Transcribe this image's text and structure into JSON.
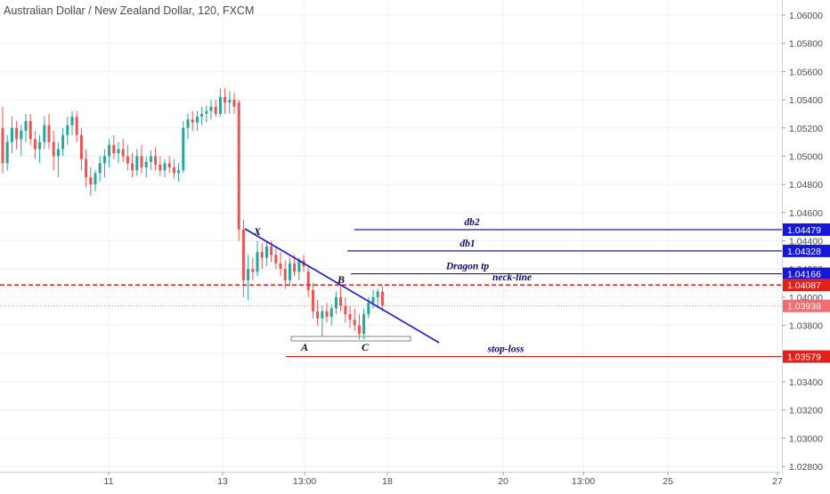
{
  "header": {
    "title": "Australian Dollar / New Zealand Dollar, 120, FXCM"
  },
  "colors": {
    "up": "#26a69a",
    "down": "#ef5350",
    "blue": "#1717d8",
    "red": "#e0201b",
    "grid": "#eef0f3",
    "axis_text": "#4a4a4a",
    "price_dotted": "#ff6b6b"
  },
  "chart_data": {
    "type": "candlestick",
    "ylim": [
      1.0272,
      1.0618
    ],
    "grid": true,
    "y_ticks": [
      "1.06000",
      "1.05800",
      "1.05600",
      "1.05400",
      "1.05200",
      "1.05000",
      "1.04800",
      "1.04600",
      "1.04400",
      "1.04200",
      "1.04000",
      "1.03800",
      "1.03600",
      "1.03400",
      "1.03200",
      "1.03000",
      "1.02800"
    ],
    "x_ticks": [
      "11",
      "13",
      "13:00",
      "18",
      "20",
      "13:00",
      "25",
      "27"
    ],
    "candles": [
      [
        1.052,
        1.0535,
        1.0488,
        1.0495
      ],
      [
        1.0495,
        1.0515,
        1.049,
        1.051
      ],
      [
        1.051,
        1.0528,
        1.0502,
        1.052
      ],
      [
        1.052,
        1.0525,
        1.0505,
        1.0512
      ],
      [
        1.0512,
        1.0522,
        1.05,
        1.0518
      ],
      [
        1.0518,
        1.053,
        1.051,
        1.0525
      ],
      [
        1.0525,
        1.053,
        1.0508,
        1.0512
      ],
      [
        1.0512,
        1.0518,
        1.0498,
        1.0505
      ],
      [
        1.0505,
        1.0515,
        1.0495,
        1.051
      ],
      [
        1.051,
        1.0528,
        1.0505,
        1.0522
      ],
      [
        1.0522,
        1.053,
        1.0505,
        1.051
      ],
      [
        1.051,
        1.0518,
        1.049,
        1.05
      ],
      [
        1.05,
        1.051,
        1.0485,
        1.0505
      ],
      [
        1.0505,
        1.052,
        1.05,
        1.0515
      ],
      [
        1.0515,
        1.0528,
        1.0508,
        1.0522
      ],
      [
        1.0522,
        1.0532,
        1.0515,
        1.0528
      ],
      [
        1.0528,
        1.0532,
        1.051,
        1.0515
      ],
      [
        1.0515,
        1.052,
        1.049,
        1.0498
      ],
      [
        1.0498,
        1.0505,
        1.0478,
        1.0485
      ],
      [
        1.0485,
        1.0492,
        1.0472,
        1.048
      ],
      [
        1.048,
        1.049,
        1.0475,
        1.0488
      ],
      [
        1.0488,
        1.05,
        1.0482,
        1.0495
      ],
      [
        1.0495,
        1.0505,
        1.0485,
        1.05
      ],
      [
        1.05,
        1.0512,
        1.0492,
        1.0508
      ],
      [
        1.0508,
        1.0515,
        1.0498,
        1.0502
      ],
      [
        1.0502,
        1.051,
        1.0495,
        1.0505
      ],
      [
        1.0505,
        1.0512,
        1.0496,
        1.05
      ],
      [
        1.05,
        1.0508,
        1.049,
        1.0495
      ],
      [
        1.0495,
        1.0502,
        1.0485,
        1.049
      ],
      [
        1.049,
        1.0505,
        1.0486,
        1.05
      ],
      [
        1.05,
        1.0508,
        1.0488,
        1.0492
      ],
      [
        1.0492,
        1.05,
        1.0485,
        1.0496
      ],
      [
        1.0496,
        1.0504,
        1.049,
        1.05
      ],
      [
        1.05,
        1.0506,
        1.049,
        1.0494
      ],
      [
        1.0494,
        1.05,
        1.0486,
        1.049
      ],
      [
        1.049,
        1.0498,
        1.0485,
        1.0495
      ],
      [
        1.0495,
        1.05,
        1.0488,
        1.0492
      ],
      [
        1.0492,
        1.0498,
        1.0484,
        1.0488
      ],
      [
        1.0488,
        1.0495,
        1.0482,
        1.049
      ],
      [
        1.049,
        1.0525,
        1.0488,
        1.052
      ],
      [
        1.052,
        1.053,
        1.0512,
        1.0526
      ],
      [
        1.0526,
        1.0532,
        1.0518,
        1.0524
      ],
      [
        1.0524,
        1.0532,
        1.0518,
        1.0528
      ],
      [
        1.0528,
        1.0535,
        1.0522,
        1.053
      ],
      [
        1.053,
        1.0536,
        1.0524,
        1.0532
      ],
      [
        1.0532,
        1.054,
        1.0526,
        1.0535
      ],
      [
        1.0535,
        1.054,
        1.0528,
        1.053
      ],
      [
        1.053,
        1.0548,
        1.0528,
        1.0542
      ],
      [
        1.0542,
        1.0548,
        1.053,
        1.0538
      ],
      [
        1.0538,
        1.0546,
        1.053,
        1.054
      ],
      [
        1.054,
        1.0545,
        1.053,
        1.0535
      ],
      [
        1.0538,
        1.054,
        1.044,
        1.0448
      ],
      [
        1.0448,
        1.0455,
        1.04,
        1.0412
      ],
      [
        1.0412,
        1.043,
        1.0398,
        1.042
      ],
      [
        1.042,
        1.0428,
        1.0412,
        1.0418
      ],
      [
        1.0418,
        1.044,
        1.0415,
        1.0432
      ],
      [
        1.0432,
        1.0438,
        1.042,
        1.0428
      ],
      [
        1.0428,
        1.044,
        1.0422,
        1.0436
      ],
      [
        1.0436,
        1.044,
        1.0425,
        1.043
      ],
      [
        1.043,
        1.0436,
        1.042,
        1.0424
      ],
      [
        1.0424,
        1.0432,
        1.0415,
        1.042
      ],
      [
        1.042,
        1.0426,
        1.0406,
        1.0412
      ],
      [
        1.0412,
        1.0428,
        1.0408,
        1.0424
      ],
      [
        1.0424,
        1.043,
        1.0415,
        1.0418
      ],
      [
        1.0418,
        1.0428,
        1.0412,
        1.0426
      ],
      [
        1.0426,
        1.043,
        1.0418,
        1.0422
      ],
      [
        1.0418,
        1.0422,
        1.04,
        1.0405
      ],
      [
        1.0405,
        1.041,
        1.0385,
        1.039
      ],
      [
        1.039,
        1.0398,
        1.038,
        1.0385
      ],
      [
        1.0385,
        1.0394,
        1.0372,
        1.039
      ],
      [
        1.039,
        1.0396,
        1.0382,
        1.0386
      ],
      [
        1.0386,
        1.0395,
        1.038,
        1.0392
      ],
      [
        1.0392,
        1.0404,
        1.0388,
        1.04
      ],
      [
        1.04,
        1.0408,
        1.039,
        1.0394
      ],
      [
        1.0394,
        1.04,
        1.0382,
        1.0388
      ],
      [
        1.0388,
        1.0394,
        1.0378,
        1.0384
      ],
      [
        1.0384,
        1.0392,
        1.0376,
        1.038
      ],
      [
        1.038,
        1.0388,
        1.037,
        1.0374
      ],
      [
        1.0374,
        1.0392,
        1.037,
        1.0388
      ],
      [
        1.0388,
        1.04,
        1.0385,
        1.0396
      ],
      [
        1.0396,
        1.0405,
        1.0392,
        1.04
      ],
      [
        1.04,
        1.0406,
        1.0392,
        1.0404
      ],
      [
        1.0404,
        1.0408,
        1.039,
        1.0394
      ]
    ],
    "levels": [
      {
        "label": "db2",
        "price": 1.04479,
        "price_label": "1.04479",
        "color": "#1717d8"
      },
      {
        "label": "db1",
        "price": 1.04328,
        "price_label": "1.04328",
        "color": "#1717d8"
      },
      {
        "label": "Dragon tp",
        "price": 1.04166,
        "price_label": "1.04166",
        "color": "#1717d8"
      },
      {
        "label": "neck-line",
        "price": 1.04087,
        "price_label": "1.04087",
        "color": "#e0201b"
      },
      {
        "label": "stop-loss",
        "price": 1.03579,
        "price_label": "1.03579",
        "color": "#e0201b"
      }
    ],
    "current_price": {
      "price": 1.03938,
      "price_label": "1.03938",
      "color": "#ff6b6b"
    },
    "points": [
      "X",
      "A",
      "B",
      "C"
    ]
  }
}
